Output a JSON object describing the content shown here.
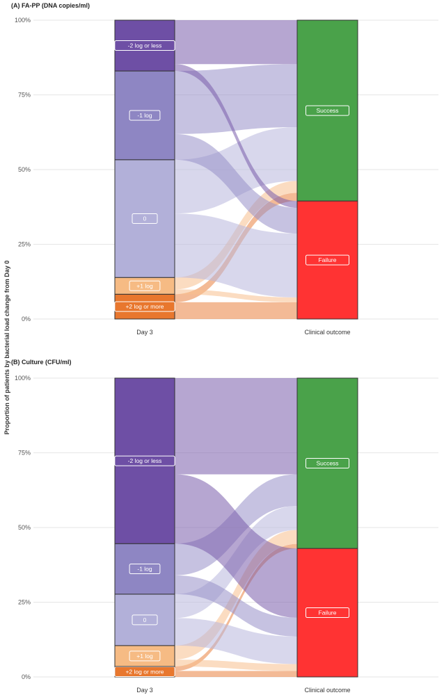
{
  "figure": {
    "ylabel": "Proportion of patients by bacterial load change from Day 0"
  },
  "chart_data": [
    {
      "type": "alluvial",
      "title": "(A) FA-PP (DNA copies/ml)",
      "ylabel": "Proportion of patients by bacterial load change from Day 0",
      "ylim": [
        0,
        100
      ],
      "yticks": [
        "0%",
        "25%",
        "50%",
        "75%",
        "100%"
      ],
      "axes": [
        "Day 3",
        "Clinical outcome"
      ],
      "left_categories": [
        {
          "label": "+2 log or more",
          "value": 8.3,
          "color": "#E8772E"
        },
        {
          "label": "+1 log",
          "value": 5.6,
          "color": "#F6BB84"
        },
        {
          "label": "0",
          "value": 39.4,
          "color": "#B2B0D9"
        },
        {
          "label": "-1 log",
          "value": 29.7,
          "color": "#8E86C3"
        },
        {
          "label": "-2 log or less",
          "value": 17.0,
          "color": "#6E4FA5"
        }
      ],
      "right_categories": [
        {
          "label": "Failure",
          "value": 39.5,
          "color": "#FF3333"
        },
        {
          "label": "Success",
          "value": 60.5,
          "color": "#4AA24A"
        }
      ],
      "flows": [
        {
          "from": "+2 log or more",
          "to": "Failure",
          "value": 5.6
        },
        {
          "from": "+2 log or more",
          "to": "Success",
          "value": 2.7
        },
        {
          "from": "+1 log",
          "to": "Failure",
          "value": 1.6
        },
        {
          "from": "+1 log",
          "to": "Success",
          "value": 4.0
        },
        {
          "from": "0",
          "to": "Failure",
          "value": 21.4
        },
        {
          "from": "0",
          "to": "Success",
          "value": 18.0
        },
        {
          "from": "-1 log",
          "to": "Failure",
          "value": 8.6
        },
        {
          "from": "-1 log",
          "to": "Success",
          "value": 21.1
        },
        {
          "from": "-2 log or less",
          "to": "Failure",
          "value": 2.3
        },
        {
          "from": "-2 log or less",
          "to": "Success",
          "value": 14.7
        }
      ]
    },
    {
      "type": "alluvial",
      "title": "(B) Culture (CFU/ml)",
      "ylabel": "Proportion of patients by bacterial load change from Day 0",
      "ylim": [
        0,
        100
      ],
      "yticks": [
        "0%",
        "25%",
        "50%",
        "75%",
        "100%"
      ],
      "axes": [
        "Day 3",
        "Clinical outcome"
      ],
      "left_categories": [
        {
          "label": "+2 log or more",
          "value": 3.5,
          "color": "#E8772E"
        },
        {
          "label": "+1 log",
          "value": 7.0,
          "color": "#F6BB84"
        },
        {
          "label": "0",
          "value": 17.2,
          "color": "#B2B0D9"
        },
        {
          "label": "-1 log",
          "value": 16.9,
          "color": "#8E86C3"
        },
        {
          "label": "-2 log or less",
          "value": 55.4,
          "color": "#6E4FA5"
        }
      ],
      "right_categories": [
        {
          "label": "Failure",
          "value": 43.0,
          "color": "#FF3333"
        },
        {
          "label": "Success",
          "value": 57.0,
          "color": "#4AA24A"
        }
      ],
      "flows": [
        {
          "from": "+2 log or more",
          "to": "Failure",
          "value": 2.0
        },
        {
          "from": "+2 log or more",
          "to": "Success",
          "value": 1.5
        },
        {
          "from": "+1 log",
          "to": "Failure",
          "value": 2.3
        },
        {
          "from": "+1 log",
          "to": "Success",
          "value": 4.7
        },
        {
          "from": "0",
          "to": "Failure",
          "value": 9.2
        },
        {
          "from": "0",
          "to": "Success",
          "value": 8.0
        },
        {
          "from": "-1 log",
          "to": "Failure",
          "value": 6.3
        },
        {
          "from": "-1 log",
          "to": "Success",
          "value": 10.6
        },
        {
          "from": "-2 log or less",
          "to": "Failure",
          "value": 23.2
        },
        {
          "from": "-2 log or less",
          "to": "Success",
          "value": 32.2
        }
      ]
    }
  ]
}
